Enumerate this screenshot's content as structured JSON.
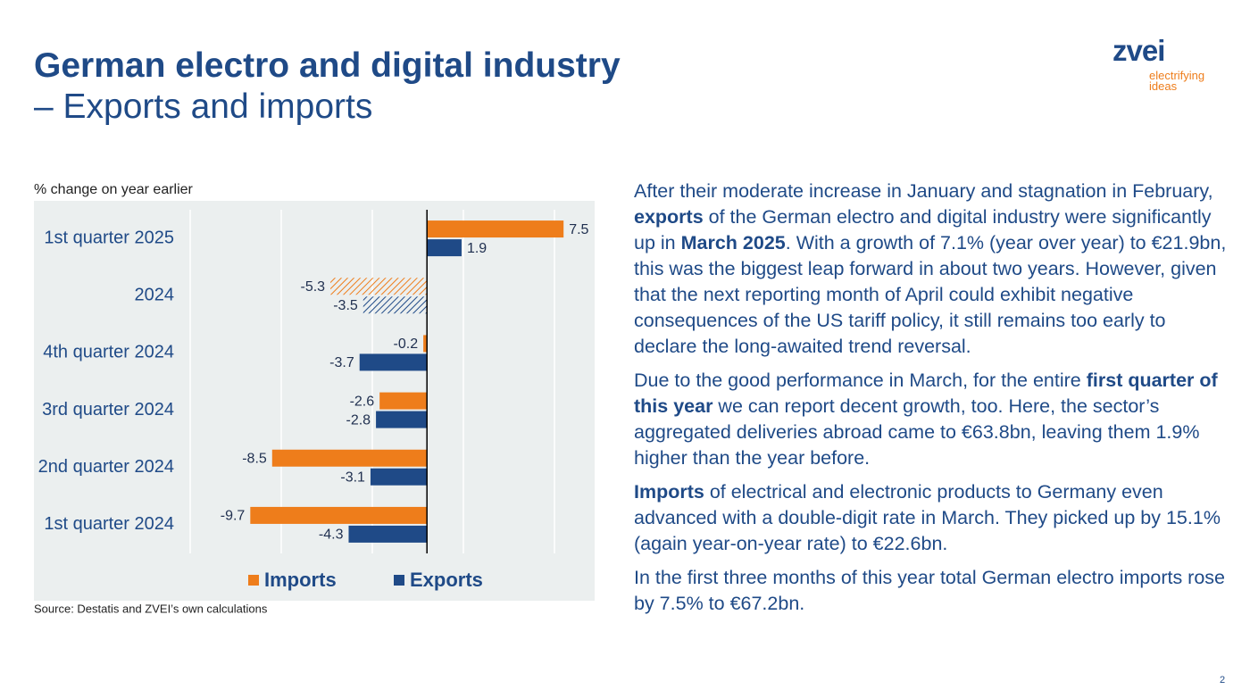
{
  "header": {
    "title": "German electro and digital industry",
    "subtitle": "– Exports and imports"
  },
  "logo": {
    "name": "zvei",
    "tagline_1": "electrifying",
    "tagline_2": "ideas"
  },
  "chart_data": {
    "type": "hbar",
    "axis_label": "% change on year earlier",
    "categories": [
      "1st quarter 2025",
      "2024",
      "4th quarter 2024",
      "3rd quarter 2024",
      "2nd quarter 2024",
      "1st quarter 2024"
    ],
    "series": [
      {
        "name": "Imports",
        "color": "#ee7d1b",
        "values": [
          7.5,
          -5.3,
          -0.2,
          -2.6,
          -8.5,
          -9.7
        ]
      },
      {
        "name": "Exports",
        "color": "#1f4a87",
        "values": [
          1.9,
          -3.5,
          -3.7,
          -2.8,
          -3.1,
          -4.3
        ]
      }
    ],
    "hatched": [
      false,
      true,
      false,
      false,
      false,
      false
    ],
    "xlim": [
      -13,
      8.5
    ],
    "xticks": [
      -13,
      -8,
      -3,
      2,
      7
    ],
    "grid": true,
    "tick_labels": false,
    "source": "Source: Destatis and ZVEI’s own calculations"
  },
  "text": {
    "paragraphs": [
      [
        {
          "text": "After their moderate increase in January and stagnation in February, ",
          "bold": false
        },
        {
          "text": "exports",
          "bold": true
        },
        {
          "text": " of the German electro and digital industry were significantly up in ",
          "bold": false
        },
        {
          "text": "March 2025",
          "bold": true
        },
        {
          "text": ". With a growth of 7.1% (year over year) to €21.9bn, this was the biggest leap forward in about two years. However, given that the next reporting month of April could exhibit negative consequences of the US tariff policy, it still remains too early to declare the long-awaited trend reversal.",
          "bold": false
        }
      ],
      [
        {
          "text": "Due to the good performance in March, for the entire ",
          "bold": false
        },
        {
          "text": "first quarter of this year",
          "bold": true
        },
        {
          "text": " we can report decent growth, too. Here, the sector’s aggregated deliveries abroad came to €63.8bn, leaving them 1.9% higher than the year before.",
          "bold": false
        }
      ],
      [
        {
          "text": "Imports",
          "bold": true
        },
        {
          "text": " of electrical and electronic products to Germany even advanced with a double-digit rate in March. They picked up by 15.1% (again year-on-year rate) to €22.6bn.",
          "bold": false
        }
      ],
      [
        {
          "text": "In the first three months of this year total German electro imports rose by 7.5% to €67.2bn.",
          "bold": false
        }
      ]
    ]
  },
  "page_number": "2"
}
